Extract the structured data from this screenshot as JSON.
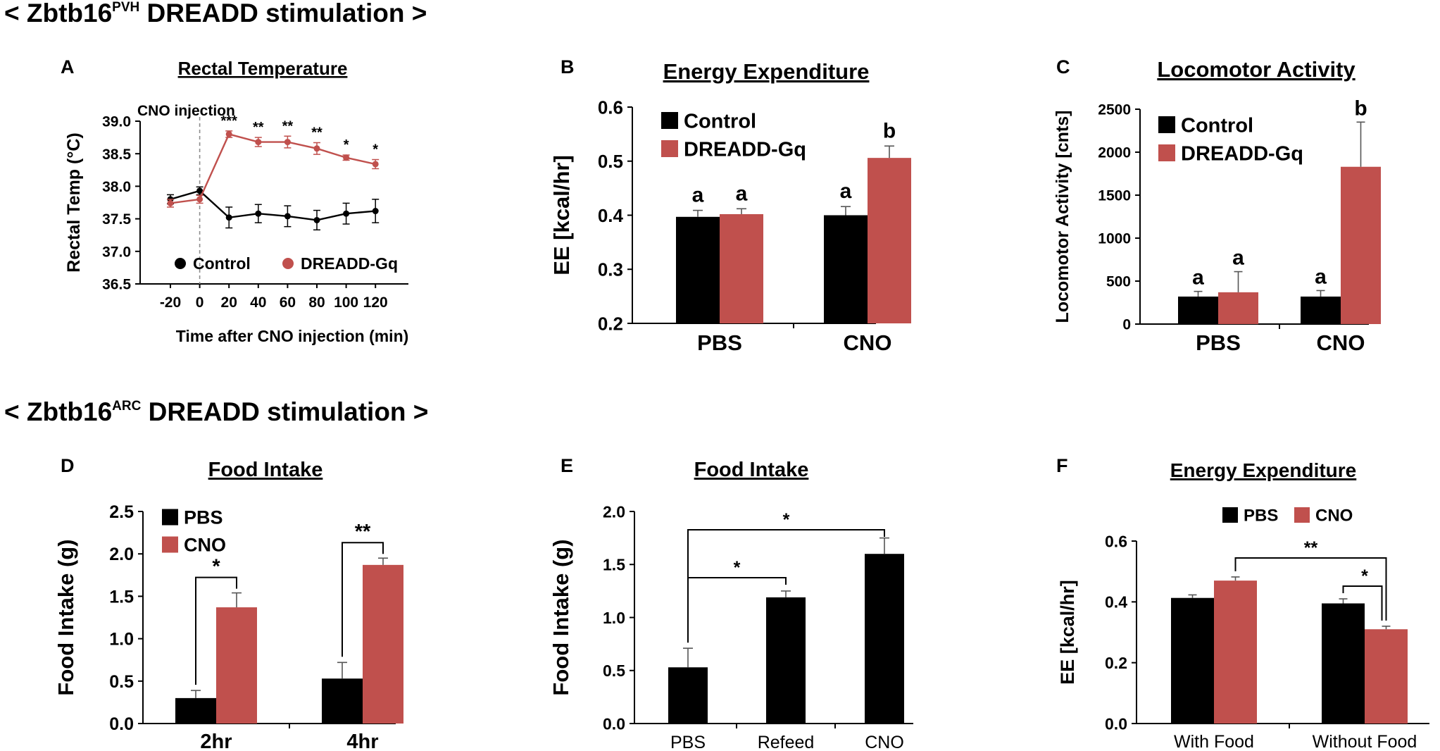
{
  "colors": {
    "control": "#000000",
    "treatment": "#c0504d",
    "axis": "#000000",
    "dashed": "#8c8c8c"
  },
  "sections": [
    {
      "prefix": "< Zbtb16",
      "superscript": "PVH",
      "suffix": " DREADD stimulation >"
    },
    {
      "prefix": "< Zbtb16",
      "superscript": "ARC",
      "suffix": " DREADD stimulation >"
    }
  ],
  "panels": [
    {
      "letter": "A",
      "title": "Rectal Temperature"
    },
    {
      "letter": "B",
      "title": "Energy Expenditure"
    },
    {
      "letter": "C",
      "title": "Locomotor Activity"
    },
    {
      "letter": "D",
      "title": "Food Intake"
    },
    {
      "letter": "E",
      "title": "Food Intake"
    },
    {
      "letter": "F",
      "title": "Energy Expenditure"
    }
  ],
  "chart_data": [
    {
      "panel": "A",
      "type": "line",
      "title": "Rectal Temperature",
      "xlabel": "Time after CNO injection (min)",
      "ylabel": "Rectal Temp (°C)",
      "x": [
        -20,
        0,
        20,
        40,
        60,
        80,
        100,
        120
      ],
      "xticks": [
        "-20",
        "0",
        "20",
        "40",
        "60",
        "80",
        "100",
        "120"
      ],
      "ylim": [
        36.5,
        39.0
      ],
      "yticks": [
        "36.5",
        "37.0",
        "37.5",
        "38.0",
        "38.5",
        "39.0"
      ],
      "series": [
        {
          "name": "Control",
          "values": [
            37.8,
            37.93,
            37.52,
            37.58,
            37.54,
            37.48,
            37.58,
            37.62
          ],
          "errors": [
            0.07,
            0.06,
            0.16,
            0.14,
            0.16,
            0.15,
            0.16,
            0.18
          ]
        },
        {
          "name": "DREADD-Gq",
          "values": [
            37.74,
            37.8,
            38.8,
            38.68,
            38.68,
            38.58,
            38.44,
            38.34
          ],
          "errors": [
            0.06,
            0.06,
            0.05,
            0.07,
            0.09,
            0.09,
            0.04,
            0.07
          ]
        }
      ],
      "annotation": "CNO injection",
      "significance": [
        "",
        "",
        "***",
        "**",
        "**",
        "**",
        "*",
        "*"
      ]
    },
    {
      "panel": "B",
      "type": "bar",
      "title": "Energy Expenditure",
      "ylabel": "EE [kcal/hr]",
      "categories": [
        "PBS",
        "CNO"
      ],
      "ylim": [
        0.2,
        0.6
      ],
      "yticks": [
        "0.2",
        "0.3",
        "0.4",
        "0.5",
        "0.6"
      ],
      "series": [
        {
          "name": "Control",
          "values": [
            0.397,
            0.4
          ],
          "errors": [
            0.012,
            0.016
          ],
          "letters": [
            "a",
            "a"
          ]
        },
        {
          "name": "DREADD-Gq",
          "values": [
            0.402,
            0.506
          ],
          "errors": [
            0.01,
            0.022
          ],
          "letters": [
            "a",
            "b"
          ]
        }
      ]
    },
    {
      "panel": "C",
      "type": "bar",
      "title": "Locomotor Activity",
      "ylabel": "Locomotor Activity [cnts]",
      "categories": [
        "PBS",
        "CNO"
      ],
      "ylim": [
        0,
        2500
      ],
      "yticks": [
        "0",
        "500",
        "1000",
        "1500",
        "2000",
        "2500"
      ],
      "series": [
        {
          "name": "Control",
          "values": [
            320,
            320
          ],
          "errors": [
            60,
            70
          ],
          "letters": [
            "a",
            "a"
          ]
        },
        {
          "name": "DREADD-Gq",
          "values": [
            370,
            1830
          ],
          "errors": [
            240,
            520
          ],
          "letters": [
            "a",
            "b"
          ]
        }
      ]
    },
    {
      "panel": "D",
      "type": "bar",
      "title": "Food Intake",
      "ylabel": "Food Intake (g)",
      "categories": [
        "2hr",
        "4hr"
      ],
      "ylim": [
        0,
        2.5
      ],
      "yticks": [
        "0.0",
        "0.5",
        "1.0",
        "1.5",
        "2.0",
        "2.5"
      ],
      "series": [
        {
          "name": "PBS",
          "values": [
            0.3,
            0.53
          ],
          "errors": [
            0.09,
            0.19
          ]
        },
        {
          "name": "CNO",
          "values": [
            1.37,
            1.87
          ],
          "errors": [
            0.17,
            0.08
          ]
        }
      ],
      "significance": [
        "*",
        "**"
      ]
    },
    {
      "panel": "E",
      "type": "bar",
      "title": "Food Intake",
      "ylabel": "Food Intake (g)",
      "categories": [
        "PBS",
        "Refeed",
        "CNO"
      ],
      "ylim": [
        0,
        2.0
      ],
      "yticks": [
        "0.0",
        "0.5",
        "1.0",
        "1.5",
        "2.0"
      ],
      "series": [
        {
          "name": "Food Intake",
          "values": [
            0.53,
            1.19,
            1.6
          ],
          "errors": [
            0.18,
            0.06,
            0.15
          ]
        }
      ],
      "significance": [
        {
          "from": "PBS",
          "to": "CNO",
          "label": "*"
        },
        {
          "from": "PBS",
          "to": "Refeed",
          "label": "*"
        }
      ]
    },
    {
      "panel": "F",
      "type": "bar",
      "title": "Energy Expenditure",
      "ylabel": "EE [kcal/hr]",
      "categories": [
        "With Food",
        "Without Food"
      ],
      "ylim": [
        0.0,
        0.6
      ],
      "yticks": [
        "0.0",
        "0.2",
        "0.4",
        "0.6"
      ],
      "series": [
        {
          "name": "PBS",
          "values": [
            0.413,
            0.395
          ],
          "errors": [
            0.01,
            0.015
          ]
        },
        {
          "name": "CNO",
          "values": [
            0.47,
            0.31
          ],
          "errors": [
            0.012,
            0.01
          ]
        }
      ],
      "significance": [
        "**",
        "*"
      ]
    }
  ]
}
